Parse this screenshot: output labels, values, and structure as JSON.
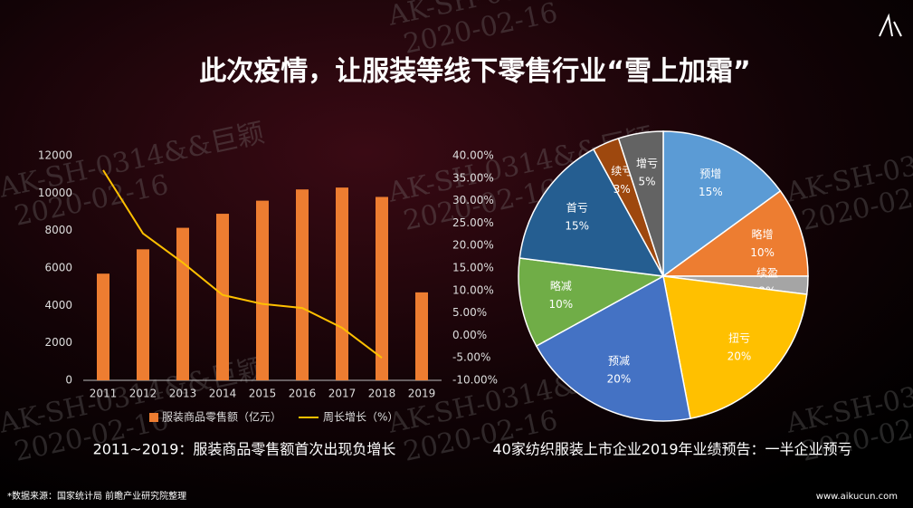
{
  "title": "此次疫情，让服装等线下零售行业“雪上加霜”",
  "chart_data": [
    {
      "type": "bar",
      "caption": "2011~2019：服装商品零售额首次出现负增长",
      "categories": [
        "2011",
        "2012",
        "2013",
        "2014",
        "2015",
        "2016",
        "2017",
        "2018",
        "2019"
      ],
      "series": [
        {
          "name": "服装商品零售额（亿元）",
          "color": "#ed7d31",
          "type": "bar",
          "values": [
            5700,
            7000,
            8150,
            8900,
            9600,
            10200,
            10300,
            9800,
            4700
          ]
        },
        {
          "name": "周长增长（%）",
          "color": "#ffc000",
          "type": "line",
          "axis": "y2",
          "values": [
            36.8,
            22.7,
            16.2,
            9,
            7,
            6.1,
            1.7,
            -5,
            null
          ]
        }
      ],
      "ylim": [
        0,
        12000
      ],
      "yticks": [
        0,
        2000,
        4000,
        6000,
        8000,
        10000,
        12000
      ],
      "y2lim": [
        -10,
        40
      ],
      "y2ticks": [
        {
          "value": -10,
          "label": "-10.00%"
        },
        {
          "value": -5,
          "label": "-5.00%"
        },
        {
          "value": 0,
          "label": "0.00%"
        },
        {
          "value": 5,
          "label": "5.00%"
        },
        {
          "value": 10,
          "label": "10.00%"
        },
        {
          "value": 15,
          "label": "15.00%"
        },
        {
          "value": 20,
          "label": "20.00%"
        },
        {
          "value": 25,
          "label": "25.00%"
        },
        {
          "value": 30,
          "label": "30.00%"
        },
        {
          "value": 35,
          "label": "35.00%"
        },
        {
          "value": 40,
          "label": "40.00%"
        }
      ],
      "legend": "bottom"
    },
    {
      "type": "pie",
      "caption": "40家纺织服装上市企业2019年业绩预告：一半企业预亏",
      "categories": [
        "预增",
        "略增",
        "续盈",
        "扭亏",
        "预减",
        "略减",
        "首亏",
        "续亏",
        "增亏"
      ],
      "values": [
        15,
        10,
        2,
        20,
        20,
        10,
        15,
        3,
        5
      ],
      "value_labels": [
        "15%",
        "10%",
        "2%",
        "20%",
        "20%",
        "10%",
        "15%",
        "3%",
        "5%"
      ],
      "colors": [
        "#5b9bd5",
        "#ed7d31",
        "#a5a5a5",
        "#ffc000",
        "#4472c4",
        "#70ad47",
        "#255e91",
        "#9e480e",
        "#636363"
      ]
    }
  ],
  "footnote": "*数据来源：国家统计局 前瞻产业研究院整理",
  "website": "www.aikucun.com",
  "watermark": [
    "AK-SH-0314&&巨颖",
    "2020-02-16"
  ]
}
